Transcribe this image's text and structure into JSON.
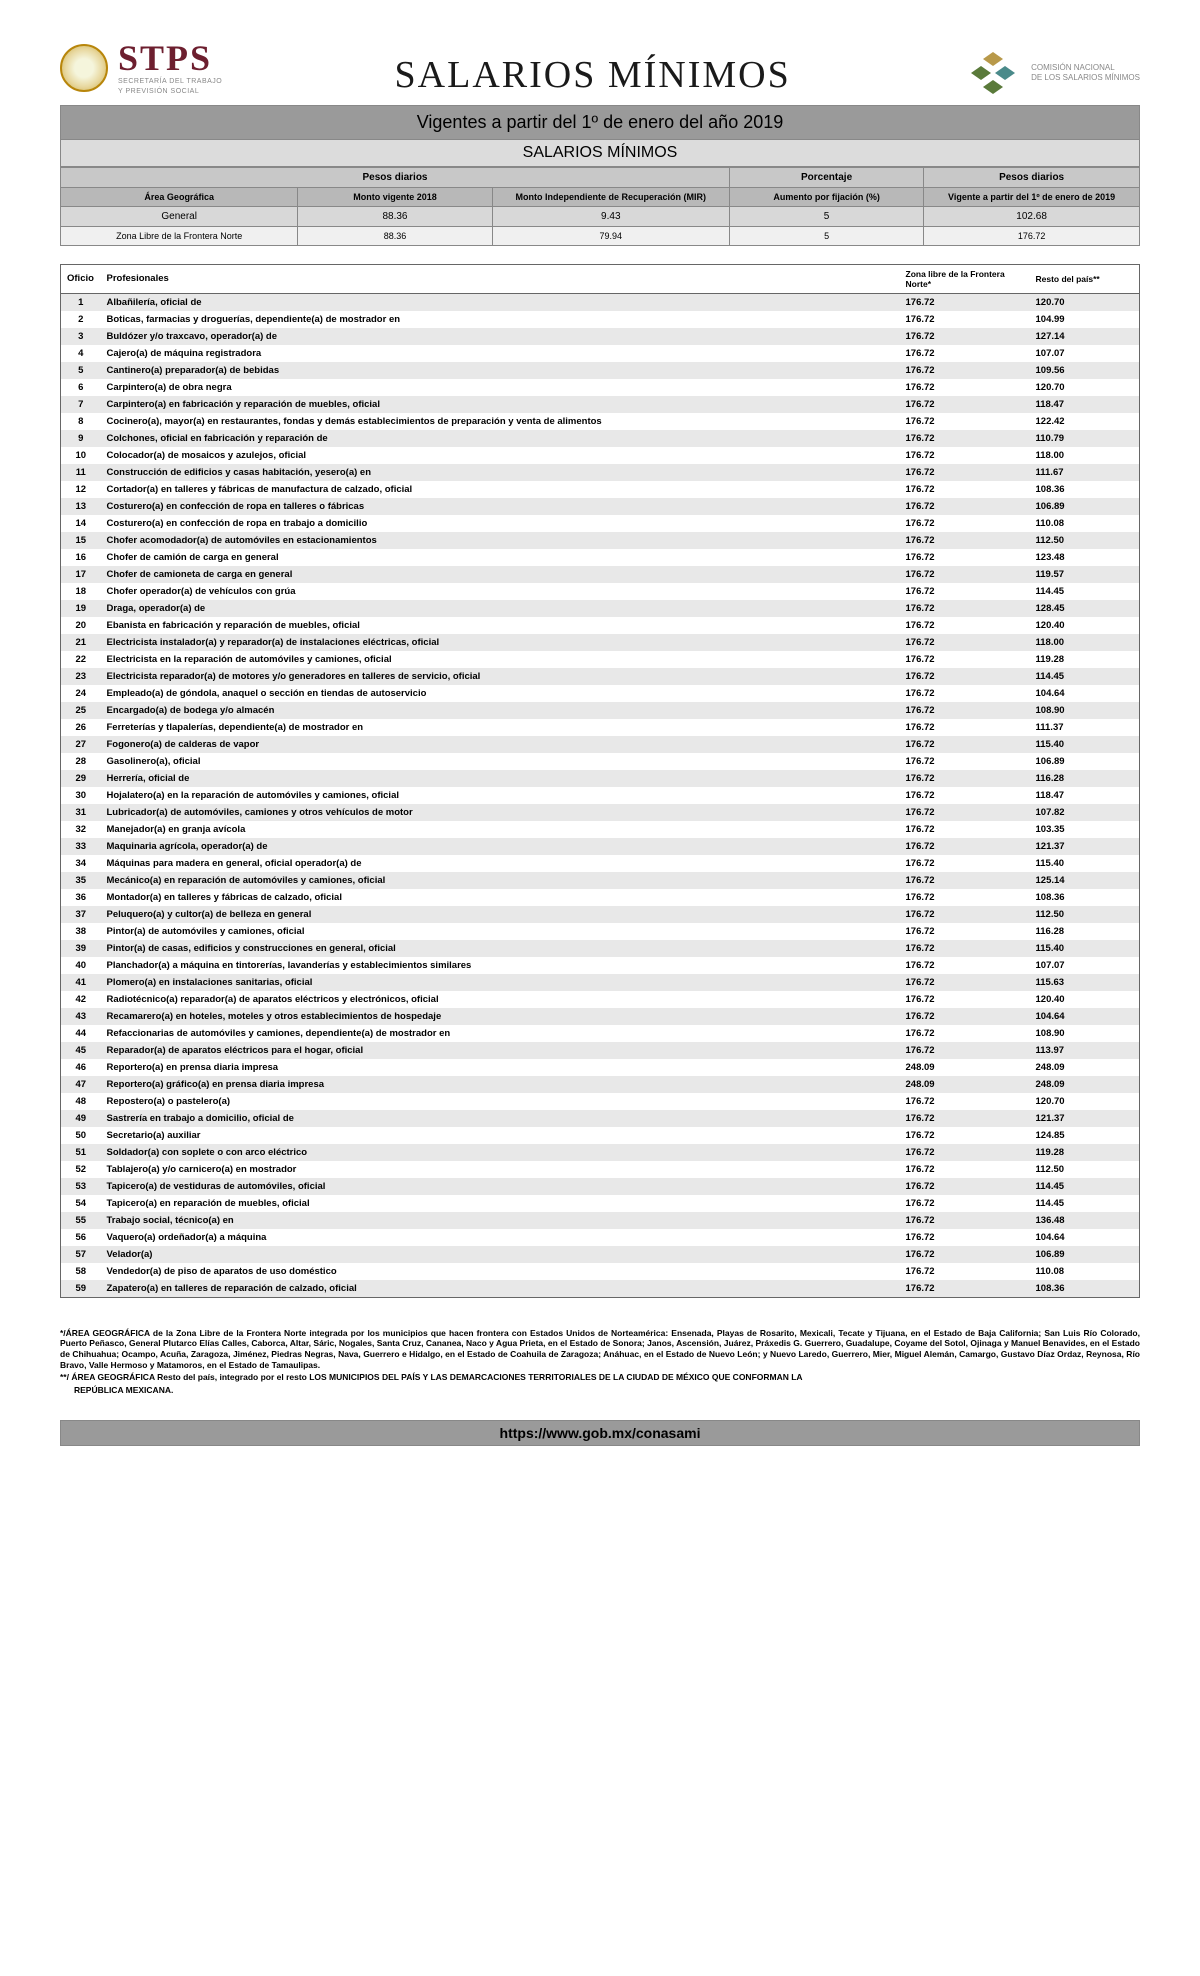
{
  "header": {
    "stps": "STPS",
    "stps_sub1": "SECRETARÍA DEL TRABAJO",
    "stps_sub2": "Y PREVISIÓN SOCIAL",
    "main_title": "SALARIOS MÍNIMOS",
    "cnsm1": "COMISIÓN NACIONAL",
    "cnsm2": "DE LOS SALARIOS MÍNIMOS"
  },
  "bands": {
    "vigentes": "Vigentes a partir del 1º de enero del año 2019",
    "salarios": "SALARIOS MÍNIMOS"
  },
  "summary": {
    "h_pesos1": "Pesos diarios",
    "h_porc": "Porcentaje",
    "h_pesos2": "Pesos diarios",
    "h_area": "Área Geográfica",
    "h_monto2018": "Monto vigente 2018",
    "h_mir": "Monto Independiente de Recuperación (MIR)",
    "h_aumento": "Aumento por fijación (%)",
    "h_vigente2019": "Vigente a partir del 1º de enero de 2019",
    "row1": {
      "area": "General",
      "m2018": "88.36",
      "mir": "9.43",
      "aum": "5",
      "v2019": "102.68"
    },
    "row2": {
      "area": "Zona Libre de la Frontera Norte",
      "m2018": "88.36",
      "mir": "79.94",
      "aum": "5",
      "v2019": "176.72"
    }
  },
  "prof": {
    "h_oficio": "Oficio",
    "h_prof": "Profesionales",
    "h_zona": "Zona libre de la Frontera Norte*",
    "h_resto": "Resto del país**",
    "rows": [
      {
        "n": "1",
        "p": "Albañilería, oficial de",
        "z": "176.72",
        "r": "120.70"
      },
      {
        "n": "2",
        "p": "Boticas, farmacias y droguerías, dependiente(a) de mostrador en",
        "z": "176.72",
        "r": "104.99"
      },
      {
        "n": "3",
        "p": "Buldózer y/o traxcavo, operador(a) de",
        "z": "176.72",
        "r": "127.14"
      },
      {
        "n": "4",
        "p": "Cajero(a) de máquina registradora",
        "z": "176.72",
        "r": "107.07"
      },
      {
        "n": "5",
        "p": "Cantinero(a) preparador(a) de bebidas",
        "z": "176.72",
        "r": "109.56"
      },
      {
        "n": "6",
        "p": "Carpintero(a) de obra negra",
        "z": "176.72",
        "r": "120.70"
      },
      {
        "n": "7",
        "p": "Carpintero(a) en fabricación y reparación de muebles, oficial",
        "z": "176.72",
        "r": "118.47"
      },
      {
        "n": "8",
        "p": "Cocinero(a), mayor(a) en restaurantes, fondas y demás establecimientos de preparación y venta de alimentos",
        "z": "176.72",
        "r": "122.42"
      },
      {
        "n": "9",
        "p": "Colchones, oficial en fabricación y reparación de",
        "z": "176.72",
        "r": "110.79"
      },
      {
        "n": "10",
        "p": "Colocador(a) de mosaicos y azulejos, oficial",
        "z": "176.72",
        "r": "118.00"
      },
      {
        "n": "11",
        "p": "Construcción de edificios y casas habitación, yesero(a) en",
        "z": "176.72",
        "r": "111.67"
      },
      {
        "n": "12",
        "p": "Cortador(a) en talleres y fábricas de manufactura de calzado, oficial",
        "z": "176.72",
        "r": "108.36"
      },
      {
        "n": "13",
        "p": "Costurero(a) en confección de ropa en talleres o fábricas",
        "z": "176.72",
        "r": "106.89"
      },
      {
        "n": "14",
        "p": "Costurero(a) en confección de ropa en trabajo a domicilio",
        "z": "176.72",
        "r": "110.08"
      },
      {
        "n": "15",
        "p": "Chofer acomodador(a) de automóviles en estacionamientos",
        "z": "176.72",
        "r": "112.50"
      },
      {
        "n": "16",
        "p": "Chofer de camión de carga en general",
        "z": "176.72",
        "r": "123.48"
      },
      {
        "n": "17",
        "p": "Chofer de camioneta de carga en general",
        "z": "176.72",
        "r": "119.57"
      },
      {
        "n": "18",
        "p": "Chofer operador(a) de vehículos con grúa",
        "z": "176.72",
        "r": "114.45"
      },
      {
        "n": "19",
        "p": "Draga, operador(a) de",
        "z": "176.72",
        "r": "128.45"
      },
      {
        "n": "20",
        "p": "Ebanista en fabricación y reparación de muebles, oficial",
        "z": "176.72",
        "r": "120.40"
      },
      {
        "n": "21",
        "p": "Electricista instalador(a) y reparador(a) de instalaciones eléctricas, oficial",
        "z": "176.72",
        "r": "118.00"
      },
      {
        "n": "22",
        "p": "Electricista en la reparación de automóviles y camiones, oficial",
        "z": "176.72",
        "r": "119.28"
      },
      {
        "n": "23",
        "p": "Electricista reparador(a) de motores y/o generadores en talleres de servicio, oficial",
        "z": "176.72",
        "r": "114.45"
      },
      {
        "n": "24",
        "p": "Empleado(a) de góndola, anaquel o sección en tiendas de autoservicio",
        "z": "176.72",
        "r": "104.64"
      },
      {
        "n": "25",
        "p": "Encargado(a) de bodega y/o almacén",
        "z": "176.72",
        "r": "108.90"
      },
      {
        "n": "26",
        "p": "Ferreterías y tlapalerías, dependiente(a) de mostrador en",
        "z": "176.72",
        "r": "111.37"
      },
      {
        "n": "27",
        "p": "Fogonero(a) de calderas de vapor",
        "z": "176.72",
        "r": "115.40"
      },
      {
        "n": "28",
        "p": "Gasolinero(a), oficial",
        "z": "176.72",
        "r": "106.89"
      },
      {
        "n": "29",
        "p": "Herrería, oficial de",
        "z": "176.72",
        "r": "116.28"
      },
      {
        "n": "30",
        "p": "Hojalatero(a) en la reparación de automóviles y camiones, oficial",
        "z": "176.72",
        "r": "118.47"
      },
      {
        "n": "31",
        "p": "Lubricador(a) de automóviles, camiones y otros vehículos de motor",
        "z": "176.72",
        "r": "107.82"
      },
      {
        "n": "32",
        "p": "Manejador(a) en granja avícola",
        "z": "176.72",
        "r": "103.35"
      },
      {
        "n": "33",
        "p": "Maquinaria agrícola, operador(a) de",
        "z": "176.72",
        "r": "121.37"
      },
      {
        "n": "34",
        "p": "Máquinas para madera en general, oficial operador(a) de",
        "z": "176.72",
        "r": "115.40"
      },
      {
        "n": "35",
        "p": "Mecánico(a) en reparación de automóviles y camiones, oficial",
        "z": "176.72",
        "r": "125.14"
      },
      {
        "n": "36",
        "p": "Montador(a) en talleres y fábricas de calzado, oficial",
        "z": "176.72",
        "r": "108.36"
      },
      {
        "n": "37",
        "p": "Peluquero(a) y cultor(a) de belleza en general",
        "z": "176.72",
        "r": "112.50"
      },
      {
        "n": "38",
        "p": "Pintor(a) de automóviles y camiones, oficial",
        "z": "176.72",
        "r": "116.28"
      },
      {
        "n": "39",
        "p": "Pintor(a) de casas, edificios y construcciones en general, oficial",
        "z": "176.72",
        "r": "115.40"
      },
      {
        "n": "40",
        "p": "Planchador(a) a máquina en tintorerías, lavanderías y establecimientos similares",
        "z": "176.72",
        "r": "107.07"
      },
      {
        "n": "41",
        "p": "Plomero(a) en instalaciones sanitarias, oficial",
        "z": "176.72",
        "r": "115.63"
      },
      {
        "n": "42",
        "p": "Radiotécnico(a) reparador(a) de aparatos eléctricos y electrónicos, oficial",
        "z": "176.72",
        "r": "120.40"
      },
      {
        "n": "43",
        "p": "Recamarero(a) en hoteles, moteles y otros establecimientos de hospedaje",
        "z": "176.72",
        "r": "104.64"
      },
      {
        "n": "44",
        "p": "Refaccionarias de automóviles y camiones, dependiente(a) de mostrador en",
        "z": "176.72",
        "r": "108.90"
      },
      {
        "n": "45",
        "p": "Reparador(a) de aparatos eléctricos para el hogar, oficial",
        "z": "176.72",
        "r": "113.97"
      },
      {
        "n": "46",
        "p": "Reportero(a) en prensa diaria impresa",
        "z": "248.09",
        "r": "248.09"
      },
      {
        "n": "47",
        "p": "Reportero(a) gráfico(a) en prensa diaria impresa",
        "z": "248.09",
        "r": "248.09"
      },
      {
        "n": "48",
        "p": "Repostero(a) o pastelero(a)",
        "z": "176.72",
        "r": "120.70"
      },
      {
        "n": "49",
        "p": "Sastrería en trabajo a domicilio, oficial de",
        "z": "176.72",
        "r": "121.37"
      },
      {
        "n": "50",
        "p": "Secretario(a) auxiliar",
        "z": "176.72",
        "r": "124.85"
      },
      {
        "n": "51",
        "p": "Soldador(a) con soplete o con arco eléctrico",
        "z": "176.72",
        "r": "119.28"
      },
      {
        "n": "52",
        "p": "Tablajero(a) y/o carnicero(a) en mostrador",
        "z": "176.72",
        "r": "112.50"
      },
      {
        "n": "53",
        "p": "Tapicero(a) de vestiduras de automóviles, oficial",
        "z": "176.72",
        "r": "114.45"
      },
      {
        "n": "54",
        "p": "Tapicero(a) en reparación de muebles, oficial",
        "z": "176.72",
        "r": "114.45"
      },
      {
        "n": "55",
        "p": "Trabajo social, técnico(a) en",
        "z": "176.72",
        "r": "136.48"
      },
      {
        "n": "56",
        "p": "Vaquero(a) ordeñador(a) a máquina",
        "z": "176.72",
        "r": "104.64"
      },
      {
        "n": "57",
        "p": "Velador(a)",
        "z": "176.72",
        "r": "106.89"
      },
      {
        "n": "58",
        "p": "Vendedor(a) de piso de aparatos de uso doméstico",
        "z": "176.72",
        "r": "110.08"
      },
      {
        "n": "59",
        "p": "Zapatero(a) en talleres de reparación de calzado, oficial",
        "z": "176.72",
        "r": "108.36"
      }
    ]
  },
  "footnotes": {
    "p1": "*/ÁREA GEOGRÁFICA de la Zona Libre de la Frontera Norte integrada por los municipios que hacen frontera con Estados Unidos de Norteamérica: Ensenada, Playas de Rosarito, Mexicali, Tecate y Tijuana, en el Estado de Baja California; San Luis Río Colorado, Puerto Peñasco, General Plutarco Elías Calles, Caborca, Altar, Sáric, Nogales, Santa Cruz, Cananea, Naco y Agua Prieta, en el Estado de Sonora; Janos, Ascensión, Juárez, Práxedis G. Guerrero, Guadalupe, Coyame del Sotol, Ojinaga y Manuel Benavides, en el Estado de Chihuahua; Ocampo, Acuña, Zaragoza, Jiménez, Piedras Negras, Nava, Guerrero e Hidalgo, en el Estado de Coahuila de Zaragoza; Anáhuac, en el Estado de Nuevo León; y Nuevo Laredo, Guerrero, Mier, Miguel Alemán, Camargo, Gustavo Díaz Ordaz, Reynosa, Río Bravo, Valle Hermoso y Matamoros, en el Estado de Tamaulipas.",
    "p2": "**/ ÁREA GEOGRÁFICA Resto del país, integrado por el resto LOS MUNICIPIOS DEL PAÍS Y LAS DEMARCACIONES TERRITORIALES DE LA CIUDAD DE MÉXICO QUE CONFORMAN LA",
    "p2b": "REPÚBLICA MEXICANA."
  },
  "footer": {
    "url": "https://www.gob.mx/conasami"
  },
  "colors": {
    "band_dark": "#9a9a9a",
    "band_light": "#dcdcdc",
    "row_odd": "#e8e8e8",
    "stps": "#6d1f2f",
    "cnsm_green": "#5a7a3a",
    "cnsm_gold": "#b8994a",
    "cnsm_teal": "#4a8a8a"
  }
}
